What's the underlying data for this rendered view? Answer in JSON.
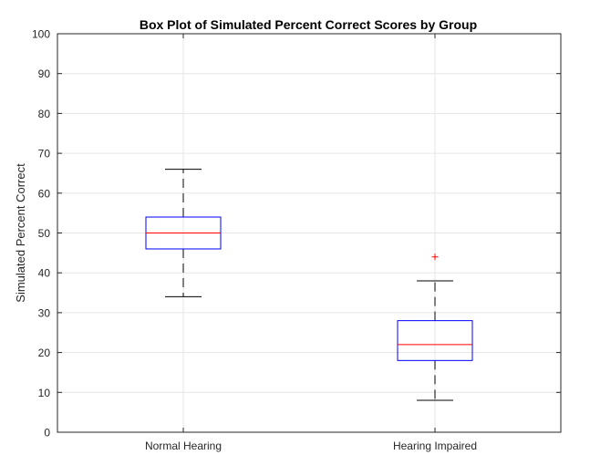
{
  "chart_data": {
    "type": "box",
    "title": "Box Plot of Simulated Percent Correct Scores by Group",
    "xlabel": "",
    "ylabel": "Simulated Percent Correct",
    "ylim": [
      0,
      100
    ],
    "yticks": [
      0,
      10,
      20,
      30,
      40,
      50,
      60,
      70,
      80,
      90,
      100
    ],
    "grid": true,
    "categories": [
      "Normal Hearing",
      "Hearing Impaired"
    ],
    "boxes": [
      {
        "name": "Normal Hearing",
        "whisker_low": 34,
        "q1": 46,
        "median": 50,
        "q3": 54,
        "whisker_high": 66,
        "outliers": []
      },
      {
        "name": "Hearing Impaired",
        "whisker_low": 8,
        "q1": 18,
        "median": 22,
        "q3": 28,
        "whisker_high": 38,
        "outliers": [
          44
        ]
      }
    ],
    "colors": {
      "box": "#0000ff",
      "median": "#ff0000",
      "whisker": "#000000",
      "outlier": "#ff0000",
      "grid": "#e6e6e6",
      "axis": "#262626"
    }
  }
}
